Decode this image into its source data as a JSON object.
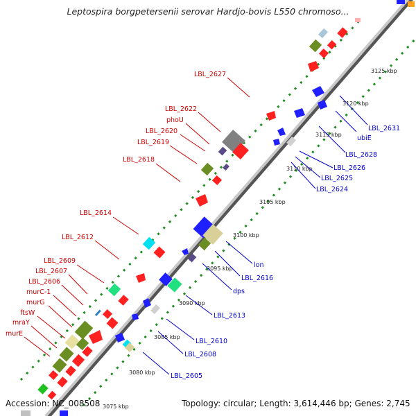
{
  "title": "Leptospira borgpetersenii serovar Hardjo-bovis L550 chromoso...",
  "footer": {
    "accession": "Accession: NC_008508",
    "topology": "Topology: circular; Length: 3,614,446 bp; Genes: 2,745"
  },
  "colors": {
    "forward_label": "#cc0000",
    "reverse_label": "#0000cc",
    "backbone": "#9a9a9a",
    "ticks": "#1e8c1e"
  },
  "kbp_marks": [
    "3075 kbp",
    "3080 kbp",
    "3085 kbp",
    "3090 kbp",
    "3095 kbp",
    "3100 kbp",
    "3105 kbp",
    "3110 kbp",
    "3115 kbp",
    "3120 kbp",
    "3125 kbp"
  ],
  "forward_labels": [
    "LBL_2627",
    "LBL_2622",
    "phoU",
    "LBL_2620",
    "LBL_2619",
    "LBL_2618",
    "LBL_2614",
    "LBL_2612",
    "LBL_2609",
    "LBL_2607",
    "LBL_2606",
    "murC-1",
    "murG",
    "ftsW",
    "mraY",
    "murE"
  ],
  "reverse_labels": [
    "LBL_2631",
    "ubiE",
    "LBL_2628",
    "LBL_2626",
    "LBL_2625",
    "LBL_2624",
    "lon",
    "LBL_2616",
    "dps",
    "LBL_2613",
    "LBL_2610",
    "LBL_2608",
    "LBL_2605"
  ]
}
